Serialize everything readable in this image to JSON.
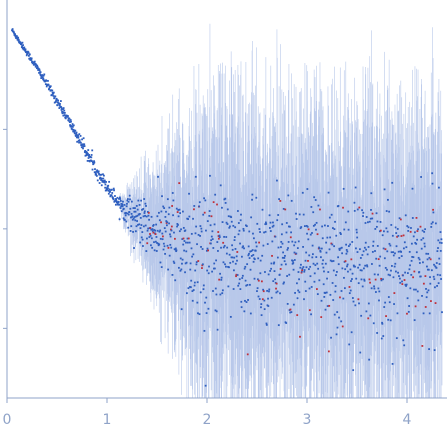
{
  "chart_data": {
    "type": "scatter",
    "title": "",
    "xlabel": "",
    "ylabel": "",
    "xlim": [
      0,
      4.4
    ],
    "ylim": [
      -2.7,
      1.25
    ],
    "x_ticks": [
      0,
      1,
      2,
      3,
      4
    ],
    "x_tick_labels": [
      "0",
      "1",
      "2",
      "3",
      "4"
    ],
    "y_ticks": [
      0,
      -1,
      -2
    ],
    "y_tick_labels": [],
    "grid": false,
    "legend": "none",
    "log_scale_y": true,
    "colors": {
      "points": "#2f5fbf",
      "outlier_points": "#c0303a",
      "error_bars": "#b8c8ea",
      "axes": "#8fa3c8"
    },
    "series": [
      {
        "trend_x": [
          0.05,
          0.3,
          0.6,
          0.9,
          1.1,
          1.3,
          1.5,
          1.8,
          2.1,
          2.5,
          3.0,
          3.5,
          4.0,
          4.4
        ],
        "trend_y": [
          1.0,
          0.62,
          0.12,
          -0.42,
          -0.72,
          -0.9,
          -1.05,
          -1.18,
          -1.25,
          -1.3,
          -1.33,
          -1.35,
          -1.36,
          -1.37
        ],
        "noise_start_x": 1.1,
        "noise_scale_y": 0.55,
        "error_bar_scale_y": 1.2
      }
    ]
  }
}
